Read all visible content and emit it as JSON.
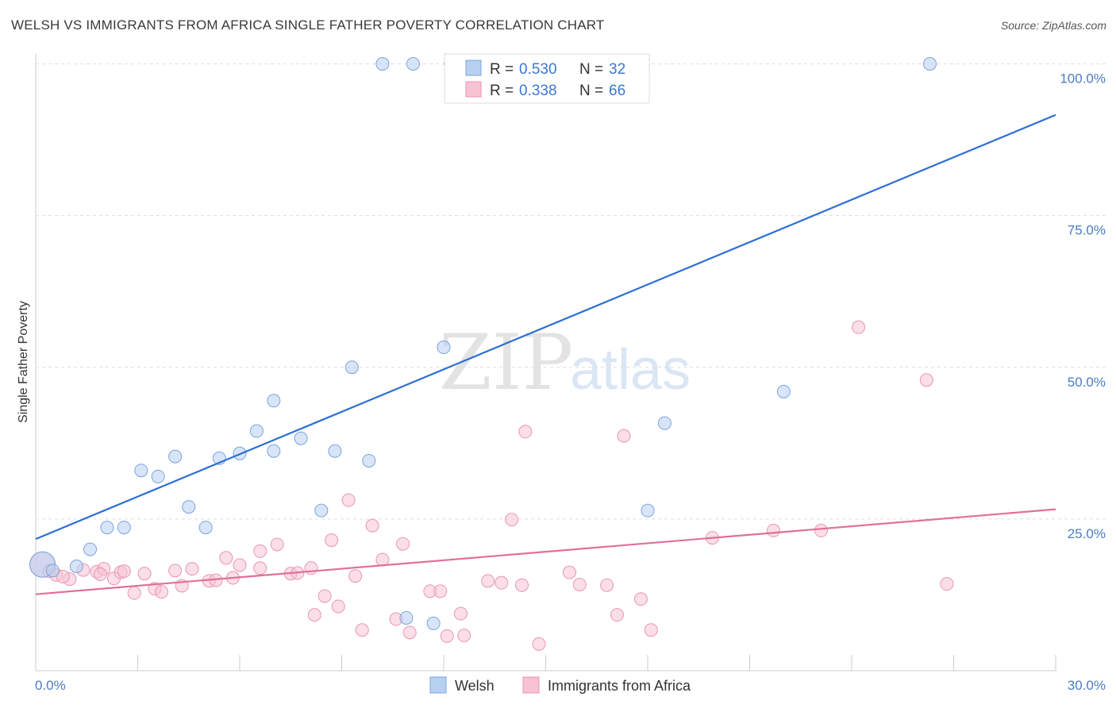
{
  "title": "WELSH VS IMMIGRANTS FROM AFRICA SINGLE FATHER POVERTY CORRELATION CHART",
  "source": "Source: ZipAtlas.com",
  "watermark": {
    "part1": "ZIP",
    "part2": "atlas"
  },
  "legend": {
    "welsh": {
      "r_label": "R = ",
      "r_value": "0.530",
      "n_label": "N = ",
      "n_value": "32"
    },
    "africa": {
      "r_label": "R = ",
      "r_value": "0.338",
      "n_label": "N = ",
      "n_value": "66"
    }
  },
  "colors": {
    "welsh_fill": "#b8d0f2",
    "welsh_stroke": "#7aa3dd",
    "welsh_line": "#2c6fd1",
    "africa_fill": "#f7c3d3",
    "africa_stroke": "#e896b0",
    "africa_line": "#e0709a",
    "tick_text": "#4a7cc7",
    "grid": "#dddddd"
  },
  "chart_data": {
    "type": "scatter",
    "title": "WELSH VS IMMIGRANTS FROM AFRICA SINGLE FATHER POVERTY CORRELATION CHART",
    "xlabel": "",
    "ylabel": "Single Father Poverty",
    "xlim": [
      0,
      30
    ],
    "ylim": [
      0,
      102
    ],
    "x_tick_labels": [
      "0.0%",
      "30.0%"
    ],
    "y_ticks": [
      25,
      50,
      75,
      100
    ],
    "y_tick_labels": [
      "25.0%",
      "50.0%",
      "75.0%",
      "100.0%"
    ],
    "grid": true,
    "legend_position": "top-center",
    "series": [
      {
        "name": "Welsh",
        "points": [
          [
            0.2,
            17.5
          ],
          [
            0.5,
            16.5
          ],
          [
            1.2,
            17.2
          ],
          [
            1.6,
            20.0
          ],
          [
            2.1,
            23.6
          ],
          [
            2.6,
            23.6
          ],
          [
            3.1,
            33.0
          ],
          [
            3.6,
            32.0
          ],
          [
            4.1,
            35.3
          ],
          [
            4.5,
            27.0
          ],
          [
            5.0,
            23.6
          ],
          [
            5.4,
            35.0
          ],
          [
            6.0,
            35.8
          ],
          [
            6.5,
            39.5
          ],
          [
            7.0,
            36.2
          ],
          [
            7.0,
            44.5
          ],
          [
            7.8,
            38.3
          ],
          [
            8.4,
            26.4
          ],
          [
            8.8,
            36.2
          ],
          [
            9.3,
            50.0
          ],
          [
            9.8,
            34.6
          ],
          [
            10.2,
            100.0
          ],
          [
            11.1,
            100.0
          ],
          [
            10.9,
            8.7
          ],
          [
            11.7,
            7.8
          ],
          [
            12.0,
            53.3
          ],
          [
            12.2,
            100.0
          ],
          [
            14.0,
            100.0
          ],
          [
            18.0,
            26.4
          ],
          [
            18.5,
            40.8
          ],
          [
            22.0,
            46.0
          ],
          [
            26.3,
            100.0
          ]
        ],
        "trend": {
          "x": [
            0,
            30
          ],
          "y": [
            21.7,
            91.6
          ]
        }
      },
      {
        "name": "Immigrants from Africa",
        "points": [
          [
            0.2,
            17.5
          ],
          [
            0.4,
            16.4
          ],
          [
            0.6,
            15.8
          ],
          [
            1.0,
            15.1
          ],
          [
            1.4,
            16.6
          ],
          [
            1.8,
            16.3
          ],
          [
            2.0,
            16.8
          ],
          [
            2.3,
            15.2
          ],
          [
            2.5,
            16.2
          ],
          [
            2.6,
            16.4
          ],
          [
            2.9,
            12.8
          ],
          [
            3.2,
            16.0
          ],
          [
            3.5,
            13.5
          ],
          [
            3.7,
            13.0
          ],
          [
            4.1,
            16.5
          ],
          [
            4.3,
            14.0
          ],
          [
            4.6,
            16.8
          ],
          [
            5.1,
            14.8
          ],
          [
            5.3,
            14.9
          ],
          [
            5.6,
            18.6
          ],
          [
            5.8,
            15.3
          ],
          [
            6.0,
            17.4
          ],
          [
            6.6,
            19.7
          ],
          [
            6.6,
            16.9
          ],
          [
            7.1,
            20.8
          ],
          [
            7.5,
            16.0
          ],
          [
            7.7,
            16.1
          ],
          [
            8.1,
            16.9
          ],
          [
            8.2,
            9.2
          ],
          [
            8.5,
            12.3
          ],
          [
            8.7,
            21.5
          ],
          [
            8.9,
            10.6
          ],
          [
            9.2,
            28.1
          ],
          [
            9.4,
            15.6
          ],
          [
            9.6,
            6.7
          ],
          [
            9.9,
            23.9
          ],
          [
            10.2,
            18.3
          ],
          [
            10.6,
            8.5
          ],
          [
            10.8,
            20.9
          ],
          [
            11.0,
            6.3
          ],
          [
            11.6,
            13.1
          ],
          [
            11.9,
            13.1
          ],
          [
            12.1,
            5.7
          ],
          [
            12.5,
            9.4
          ],
          [
            12.6,
            5.8
          ],
          [
            13.3,
            14.8
          ],
          [
            13.7,
            14.5
          ],
          [
            14.0,
            24.9
          ],
          [
            14.3,
            14.1
          ],
          [
            14.4,
            39.4
          ],
          [
            14.8,
            4.4
          ],
          [
            15.7,
            16.2
          ],
          [
            16.0,
            14.2
          ],
          [
            16.8,
            14.1
          ],
          [
            17.1,
            9.2
          ],
          [
            17.3,
            38.7
          ],
          [
            17.8,
            11.8
          ],
          [
            18.1,
            6.7
          ],
          [
            19.9,
            21.9
          ],
          [
            21.7,
            23.1
          ],
          [
            23.1,
            23.1
          ],
          [
            24.2,
            56.6
          ],
          [
            26.2,
            47.9
          ],
          [
            26.8,
            14.3
          ],
          [
            0.8,
            15.5
          ],
          [
            1.9,
            15.9
          ]
        ],
        "trend": {
          "x": [
            0,
            30
          ],
          "y": [
            12.6,
            26.6
          ]
        }
      }
    ]
  },
  "bottom_legend": {
    "welsh": "Welsh",
    "africa": "Immigrants from Africa"
  }
}
